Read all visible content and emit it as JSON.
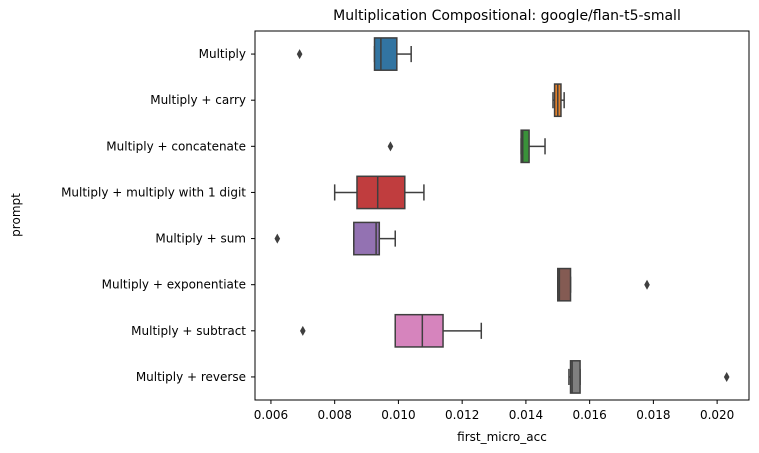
{
  "chart_data": {
    "type": "box",
    "orientation": "horizontal",
    "title": "Multiplication Compositional: google/flan-t5-small",
    "xlabel": "first_micro_acc",
    "ylabel": "prompt",
    "xlim": [
      0.0055,
      0.021
    ],
    "xticks": [
      "0.006",
      "0.008",
      "0.010",
      "0.012",
      "0.014",
      "0.016",
      "0.018",
      "0.020"
    ],
    "grid": false,
    "series": [
      {
        "name": "Multiply",
        "color": "#3274a1",
        "whisker_low": 0.00925,
        "q1": 0.00925,
        "median": 0.00945,
        "q3": 0.00995,
        "whisker_high": 0.0104,
        "outliers": [
          0.0069
        ]
      },
      {
        "name": "Multiply + carry",
        "color": "#e1812c",
        "whisker_low": 0.01485,
        "q1": 0.0149,
        "median": 0.015,
        "q3": 0.0151,
        "whisker_high": 0.0152,
        "outliers": []
      },
      {
        "name": "Multiply + concatenate",
        "color": "#3a923a",
        "whisker_low": 0.01385,
        "q1": 0.01385,
        "median": 0.0139,
        "q3": 0.0141,
        "whisker_high": 0.0146,
        "outliers": [
          0.00975
        ]
      },
      {
        "name": "Multiply + multiply with 1 digit",
        "color": "#c03d3e",
        "whisker_low": 0.008,
        "q1": 0.0087,
        "median": 0.00935,
        "q3": 0.0102,
        "whisker_high": 0.0108,
        "outliers": []
      },
      {
        "name": "Multiply + sum",
        "color": "#9372b2",
        "whisker_low": 0.0086,
        "q1": 0.0086,
        "median": 0.0093,
        "q3": 0.0094,
        "whisker_high": 0.0099,
        "outliers": [
          0.0062
        ]
      },
      {
        "name": "Multiply + exponentiate",
        "color": "#845b53",
        "whisker_low": 0.015,
        "q1": 0.015,
        "median": 0.01505,
        "q3": 0.0154,
        "whisker_high": 0.0154,
        "outliers": [
          0.0178
        ]
      },
      {
        "name": "Multiply + subtract",
        "color": "#d684bd",
        "whisker_low": 0.0099,
        "q1": 0.0099,
        "median": 0.01075,
        "q3": 0.0114,
        "whisker_high": 0.0126,
        "outliers": [
          0.007
        ]
      },
      {
        "name": "Multiply + reverse",
        "color": "#7f7f7f",
        "whisker_low": 0.01535,
        "q1": 0.0154,
        "median": 0.01545,
        "q3": 0.0157,
        "whisker_high": 0.0157,
        "outliers": [
          0.0203
        ]
      }
    ]
  }
}
